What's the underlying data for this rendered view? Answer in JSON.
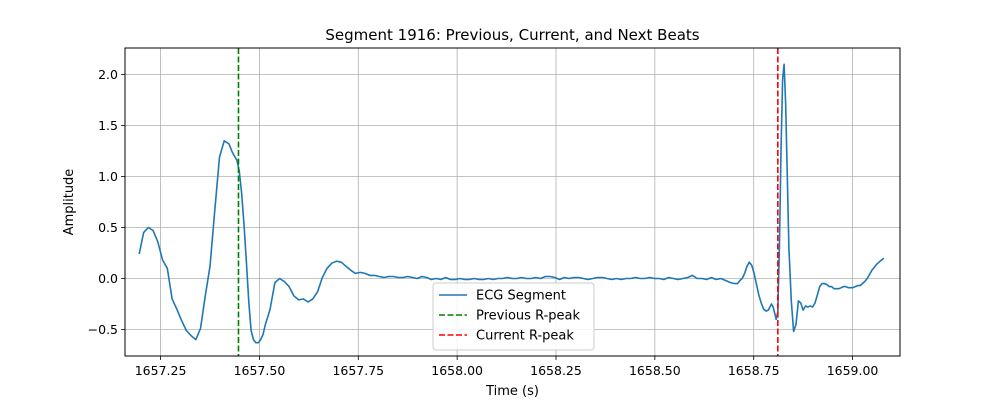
{
  "chart_data": {
    "type": "line",
    "title": "Segment 1916: Previous, Current, and Next Beats",
    "xlabel": "Time (s)",
    "ylabel": "Amplitude",
    "xlim": [
      1657.16,
      1659.12
    ],
    "ylim": [
      -0.76,
      2.26
    ],
    "xticks": [
      1657.25,
      1657.5,
      1657.75,
      1658.0,
      1658.25,
      1658.5,
      1658.75,
      1659.0
    ],
    "xtick_labels": [
      "1657.25",
      "1657.50",
      "1657.75",
      "1658.00",
      "1658.25",
      "1658.50",
      "1658.75",
      "1659.00"
    ],
    "yticks": [
      -0.5,
      0.0,
      0.5,
      1.0,
      1.5,
      2.0
    ],
    "ytick_labels": [
      "−0.5",
      "0.0",
      "0.5",
      "1.0",
      "1.5",
      "2.0"
    ],
    "grid": true,
    "legend_position": "bottom-center",
    "series": [
      {
        "name": "ECG Segment",
        "color": "#1f77b4",
        "style": "solid",
        "x": [
          1657.196,
          1657.207,
          1657.219,
          1657.231,
          1657.243,
          1657.255,
          1657.267,
          1657.279,
          1657.291,
          1657.303,
          1657.315,
          1657.327,
          1657.339,
          1657.351,
          1657.363,
          1657.375,
          1657.387,
          1657.399,
          1657.411,
          1657.423,
          1657.431,
          1657.437,
          1657.443,
          1657.449,
          1657.455,
          1657.461,
          1657.467,
          1657.473,
          1657.479,
          1657.485,
          1657.491,
          1657.497,
          1657.503,
          1657.509,
          1657.515,
          1657.521,
          1657.527,
          1657.539,
          1657.551,
          1657.563,
          1657.575,
          1657.587,
          1657.599,
          1657.611,
          1657.623,
          1657.635,
          1657.647,
          1657.659,
          1657.671,
          1657.683,
          1657.695,
          1657.707,
          1657.719,
          1657.731,
          1657.743,
          1657.755,
          1657.767,
          1657.779,
          1657.791,
          1657.803,
          1657.815,
          1657.827,
          1657.839,
          1657.851,
          1657.863,
          1657.875,
          1657.887,
          1657.899,
          1657.911,
          1657.923,
          1657.935,
          1657.947,
          1657.959,
          1657.971,
          1657.983,
          1657.995,
          1658.007,
          1658.019,
          1658.031,
          1658.043,
          1658.055,
          1658.067,
          1658.079,
          1658.091,
          1658.103,
          1658.115,
          1658.127,
          1658.139,
          1658.151,
          1658.163,
          1658.175,
          1658.187,
          1658.199,
          1658.211,
          1658.223,
          1658.235,
          1658.247,
          1658.259,
          1658.271,
          1658.283,
          1658.295,
          1658.307,
          1658.319,
          1658.331,
          1658.343,
          1658.355,
          1658.367,
          1658.379,
          1658.391,
          1658.403,
          1658.415,
          1658.427,
          1658.439,
          1658.451,
          1658.463,
          1658.475,
          1658.487,
          1658.499,
          1658.511,
          1658.523,
          1658.535,
          1658.547,
          1658.559,
          1658.571,
          1658.583,
          1658.595,
          1658.607,
          1658.619,
          1658.631,
          1658.643,
          1658.655,
          1658.667,
          1658.679,
          1658.691,
          1658.703,
          1658.709,
          1658.715,
          1658.721,
          1658.727,
          1658.733,
          1658.739,
          1658.745,
          1658.751,
          1658.757,
          1658.763,
          1658.769,
          1658.775,
          1658.781,
          1658.787,
          1658.791,
          1658.795,
          1658.799,
          1658.803,
          1658.807,
          1658.811,
          1658.815,
          1658.819,
          1658.823,
          1658.827,
          1658.831,
          1658.835,
          1658.839,
          1658.845,
          1658.851,
          1658.857,
          1658.863,
          1658.869,
          1658.875,
          1658.881,
          1658.887,
          1658.893,
          1658.899,
          1658.905,
          1658.911,
          1658.917,
          1658.923,
          1658.929,
          1658.935,
          1658.941,
          1658.947,
          1658.953,
          1658.959,
          1658.965,
          1658.971,
          1658.977,
          1658.983,
          1658.989,
          1658.995,
          1659.001,
          1659.007,
          1659.013,
          1659.019,
          1659.025,
          1659.031,
          1659.037,
          1659.043,
          1659.049,
          1659.055,
          1659.061,
          1659.067,
          1659.073,
          1659.079
        ],
        "y": [
          0.24,
          0.45,
          0.5,
          0.47,
          0.36,
          0.18,
          0.1,
          -0.2,
          -0.3,
          -0.41,
          -0.51,
          -0.56,
          -0.6,
          -0.49,
          -0.17,
          0.12,
          0.67,
          1.19,
          1.35,
          1.32,
          1.24,
          1.2,
          1.16,
          1.05,
          0.84,
          0.53,
          0.16,
          -0.23,
          -0.51,
          -0.6,
          -0.63,
          -0.63,
          -0.6,
          -0.55,
          -0.45,
          -0.38,
          -0.3,
          -0.04,
          0.0,
          -0.03,
          -0.08,
          -0.17,
          -0.21,
          -0.2,
          -0.23,
          -0.2,
          -0.13,
          0.01,
          0.1,
          0.15,
          0.17,
          0.16,
          0.12,
          0.08,
          0.05,
          0.06,
          0.05,
          0.03,
          0.03,
          0.02,
          0.01,
          0.02,
          0.02,
          0.01,
          0.01,
          0.02,
          0.01,
          0.0,
          0.02,
          0.01,
          -0.01,
          0.0,
          -0.01,
          0.01,
          -0.01,
          -0.01,
          0.0,
          -0.01,
          -0.01,
          0.0,
          -0.01,
          -0.01,
          0.0,
          -0.01,
          0.0,
          0.0,
          0.01,
          0.0,
          0.0,
          0.01,
          0.0,
          0.0,
          0.01,
          0.0,
          0.02,
          0.02,
          0.01,
          -0.01,
          0.01,
          0.0,
          0.01,
          0.01,
          0.0,
          -0.01,
          0.0,
          0.01,
          0.01,
          0.0,
          -0.01,
          0.0,
          -0.01,
          0.0,
          0.0,
          0.01,
          0.0,
          0.0,
          0.01,
          0.0,
          0.0,
          -0.01,
          0.01,
          0.0,
          -0.01,
          0.0,
          0.01,
          0.03,
          0.0,
          0.0,
          -0.01,
          0.01,
          -0.01,
          0.0,
          -0.02,
          -0.04,
          -0.05,
          -0.05,
          -0.02,
          0.0,
          0.05,
          0.12,
          0.16,
          0.13,
          0.05,
          -0.06,
          -0.16,
          -0.24,
          -0.3,
          -0.32,
          -0.31,
          -0.28,
          -0.25,
          -0.28,
          -0.34,
          -0.4,
          -0.33,
          0.3,
          1.25,
          1.95,
          2.1,
          1.7,
          1.0,
          0.3,
          -0.22,
          -0.52,
          -0.45,
          -0.22,
          -0.24,
          -0.31,
          -0.27,
          -0.28,
          -0.27,
          -0.28,
          -0.24,
          -0.16,
          -0.08,
          -0.05,
          -0.05,
          -0.06,
          -0.08,
          -0.08,
          -0.1,
          -0.1,
          -0.1,
          -0.09,
          -0.08,
          -0.08,
          -0.09,
          -0.09,
          -0.09,
          -0.08,
          -0.07,
          -0.07,
          -0.05,
          -0.03,
          0.0,
          0.04,
          0.08,
          0.11,
          0.14,
          0.16,
          0.18,
          0.2
        ]
      },
      {
        "name": "Previous R-peak",
        "color": "#008000",
        "style": "dashed",
        "x_value": 1657.447
      },
      {
        "name": "Current R-peak",
        "color": "#ff0000",
        "style": "dashed",
        "x_value": 1658.811
      }
    ]
  }
}
